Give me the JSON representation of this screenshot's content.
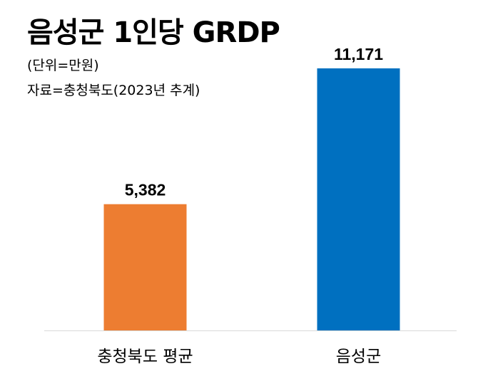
{
  "chart_data": {
    "type": "bar",
    "title": "음성군 1인당 GRDP",
    "subtitle": "(단위=만원)",
    "source": "자료=충청북도(2023년 추계)",
    "categories": [
      "충청북도 평균",
      "음성군"
    ],
    "values": [
      5382,
      11171
    ],
    "value_labels": [
      "5,382",
      "11,171"
    ],
    "colors": [
      "#ED7D31",
      "#0070C0"
    ],
    "ylim": [
      0,
      11171
    ],
    "grid": false,
    "xlabel": "",
    "ylabel": ""
  }
}
